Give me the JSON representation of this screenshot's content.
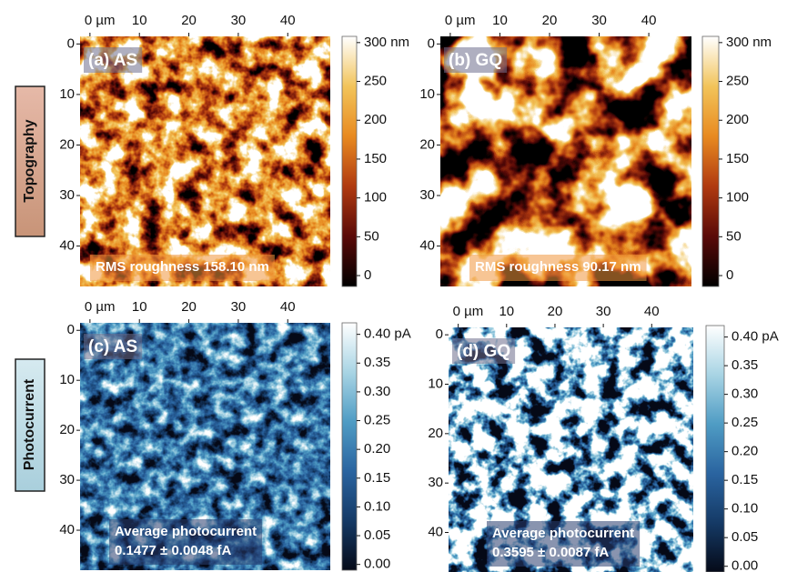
{
  "row_labels": [
    "Topography",
    "Photocurrent"
  ],
  "chart_data": [
    {
      "type": "heatmap",
      "title": "(a) AS",
      "xlim": [
        -2,
        48.6
      ],
      "ylim": [
        -1.5,
        48
      ],
      "xticks": [
        {
          "value": 0,
          "label": "0 µm"
        },
        10,
        20,
        30,
        40
      ],
      "yticks": [
        0,
        10,
        20,
        30,
        40
      ],
      "clim": [
        -14,
        308
      ],
      "cticks": [
        {
          "value": 0,
          "label": "0"
        },
        50,
        100,
        150,
        200,
        250,
        {
          "value": 300,
          "label": "300 nm"
        }
      ],
      "colormap": [
        "#000000",
        "#5a0a08",
        "#b03a10",
        "#e88a20",
        "#f2c45a",
        "#ffffff"
      ],
      "annotation": [
        "RMS roughness 158.10 nm"
      ]
    },
    {
      "type": "heatmap",
      "title": "(b) GQ",
      "xlim": [
        -2,
        48.6
      ],
      "ylim": [
        -1.5,
        48
      ],
      "xticks": [
        {
          "value": 0,
          "label": "0 µm"
        },
        10,
        20,
        30,
        40
      ],
      "yticks": [
        0,
        10,
        20,
        30,
        40
      ],
      "clim": [
        -14,
        308
      ],
      "cticks": [
        {
          "value": 0,
          "label": "0"
        },
        50,
        100,
        150,
        200,
        250,
        {
          "value": 300,
          "label": "300 nm"
        }
      ],
      "colormap": [
        "#000000",
        "#5a0a08",
        "#b03a10",
        "#e88a20",
        "#f2c45a",
        "#ffffff"
      ],
      "annotation": [
        "RMS roughness 90.17 nm"
      ]
    },
    {
      "type": "heatmap",
      "title": "(c) AS",
      "xlim": [
        -2,
        48.6
      ],
      "ylim": [
        -1.5,
        48
      ],
      "xticks": [
        {
          "value": 0,
          "label": "0 µm"
        },
        10,
        20,
        30,
        40
      ],
      "yticks": [
        0,
        10,
        20,
        30,
        40
      ],
      "clim": [
        -0.01,
        0.42
      ],
      "cticks": [
        {
          "value": 0,
          "label": "0.00"
        },
        {
          "value": 0.05,
          "label": "0.05"
        },
        {
          "value": 0.1,
          "label": "0.10"
        },
        0.15,
        {
          "value": 0.2,
          "label": "0.20"
        },
        0.25,
        {
          "value": 0.3,
          "label": "0.30"
        },
        0.35,
        {
          "value": 0.4,
          "label": "0.40 pA"
        }
      ],
      "colormap": [
        "#050a18",
        "#153a66",
        "#2a64a0",
        "#4f9cc4",
        "#a8d4e4",
        "#ffffff"
      ],
      "annotation": [
        "Average photocurrent",
        "0.1477 ±  0.0048 fA"
      ]
    },
    {
      "type": "heatmap",
      "title": "(d) GQ",
      "xlim": [
        -2,
        48.6
      ],
      "ylim": [
        -1.5,
        48
      ],
      "xticks": [
        {
          "value": 0,
          "label": "0 µm"
        },
        10,
        20,
        30,
        40
      ],
      "yticks": [
        0,
        10,
        20,
        30,
        40
      ],
      "clim": [
        -0.01,
        0.42
      ],
      "cticks": [
        {
          "value": 0,
          "label": "0.00"
        },
        {
          "value": 0.05,
          "label": "0.05"
        },
        {
          "value": 0.1,
          "label": "0.10"
        },
        0.15,
        {
          "value": 0.2,
          "label": "0.20"
        },
        0.25,
        {
          "value": 0.3,
          "label": "0.30"
        },
        0.35,
        {
          "value": 0.4,
          "label": "0.40 pA"
        }
      ],
      "colormap": [
        "#050a18",
        "#153a66",
        "#2a64a0",
        "#4f9cc4",
        "#a8d4e4",
        "#ffffff"
      ],
      "annotation": [
        "Average photocurrent",
        "0.3595 ± 0.0087 fA"
      ]
    }
  ]
}
